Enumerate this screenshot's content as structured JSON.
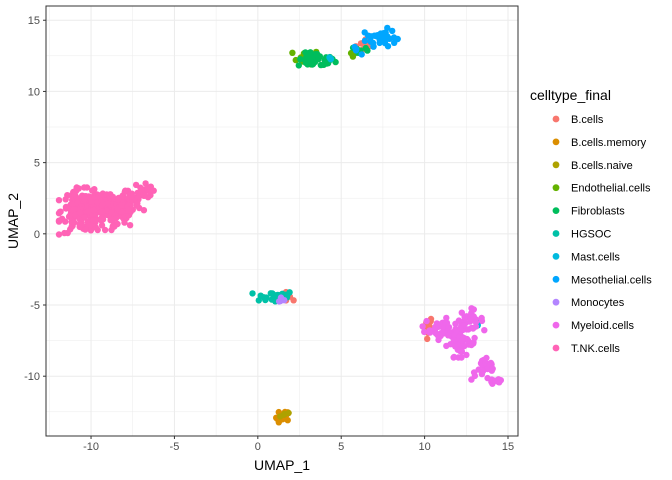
{
  "chart_data": {
    "type": "scatter",
    "xlabel": "UMAP_1",
    "ylabel": "UMAP_2",
    "xlim": [
      -12.7,
      15.6
    ],
    "ylim": [
      -14.2,
      16.0
    ],
    "x_ticks": [
      -10,
      -5,
      0,
      5,
      10,
      15
    ],
    "x_tick_labels": [
      "-10",
      "-5",
      "0",
      "5",
      "10",
      "15"
    ],
    "y_ticks": [
      -10,
      -5,
      0,
      5,
      10,
      15
    ],
    "y_tick_labels": [
      "-10",
      "-5",
      "0",
      "5",
      "10",
      "15"
    ],
    "grid": true,
    "legend": {
      "title": "celltype_final",
      "position": "right"
    },
    "series": [
      {
        "name": "B.cells",
        "color": "#F8766D",
        "clusters": [
          {
            "cx": 6.6,
            "cy": 13.3,
            "sx": 0.35,
            "sy": 0.25,
            "n": 10
          },
          {
            "cx": 10.2,
            "cy": -6.5,
            "sx": 0.15,
            "sy": 0.4,
            "n": 10
          },
          {
            "cx": 1.8,
            "cy": -4.4,
            "sx": 0.3,
            "sy": 0.15,
            "n": 6
          }
        ]
      },
      {
        "name": "B.cells.memory",
        "color": "#DB8E00",
        "clusters": [
          {
            "cx": 1.5,
            "cy": -12.9,
            "sx": 0.2,
            "sy": 0.25,
            "n": 16
          }
        ]
      },
      {
        "name": "B.cells.naive",
        "color": "#AEA200",
        "clusters": [
          {
            "cx": 1.6,
            "cy": -12.8,
            "sx": 0.15,
            "sy": 0.15,
            "n": 4
          }
        ]
      },
      {
        "name": "Endothelial.cells",
        "color": "#64B200",
        "clusters": [
          {
            "cx": 2.9,
            "cy": 12.4,
            "sx": 0.4,
            "sy": 0.25,
            "n": 12
          },
          {
            "cx": 5.7,
            "cy": 12.6,
            "sx": 0.15,
            "sy": 0.1,
            "n": 4
          }
        ]
      },
      {
        "name": "Fibroblasts",
        "color": "#00BD5C",
        "clusters": [
          {
            "cx": 3.5,
            "cy": 12.2,
            "sx": 0.55,
            "sy": 0.25,
            "n": 45
          },
          {
            "cx": 6.1,
            "cy": 12.9,
            "sx": 0.25,
            "sy": 0.15,
            "n": 8
          }
        ]
      },
      {
        "name": "HGSOC",
        "color": "#00C1A7",
        "clusters": [
          {
            "cx": 1.0,
            "cy": -4.4,
            "sx": 0.6,
            "sy": 0.2,
            "n": 35
          }
        ]
      },
      {
        "name": "Mast.cells",
        "color": "#00BADE",
        "clusters": [
          {
            "cx": 4.4,
            "cy": 12.3,
            "sx": 0.1,
            "sy": 0.1,
            "n": 3
          },
          {
            "cx": 13.2,
            "cy": -6.3,
            "sx": 0.1,
            "sy": 0.1,
            "n": 3
          }
        ]
      },
      {
        "name": "Mesothelial.cells",
        "color": "#00A6FF",
        "clusters": [
          {
            "cx": 7.4,
            "cy": 13.8,
            "sx": 0.45,
            "sy": 0.3,
            "n": 40
          },
          {
            "cx": 5.9,
            "cy": 13.0,
            "sx": 0.15,
            "sy": 0.2,
            "n": 4
          }
        ]
      },
      {
        "name": "Monocytes",
        "color": "#B385FF",
        "clusters": [
          {
            "cx": 1.4,
            "cy": -4.7,
            "sx": 0.15,
            "sy": 0.1,
            "n": 4
          }
        ]
      },
      {
        "name": "Myeloid.cells",
        "color": "#EF67EB",
        "clusters": [
          {
            "cx": 11.2,
            "cy": -6.6,
            "sx": 0.6,
            "sy": 0.4,
            "n": 50
          },
          {
            "cx": 12.2,
            "cy": -7.7,
            "sx": 0.45,
            "sy": 0.45,
            "n": 45
          },
          {
            "cx": 12.7,
            "cy": -6.0,
            "sx": 0.4,
            "sy": 0.35,
            "n": 22
          },
          {
            "cx": 13.6,
            "cy": -9.5,
            "sx": 0.4,
            "sy": 0.4,
            "n": 22
          },
          {
            "cx": 14.2,
            "cy": -10.3,
            "sx": 0.3,
            "sy": 0.2,
            "n": 12
          }
        ]
      },
      {
        "name": "T.NK.cells",
        "color": "#FF63B6",
        "clusters": [
          {
            "cx": -10.6,
            "cy": 1.6,
            "sx": 0.6,
            "sy": 0.75,
            "n": 150
          },
          {
            "cx": -9.2,
            "cy": 1.7,
            "sx": 0.7,
            "sy": 0.65,
            "n": 120
          },
          {
            "cx": -7.9,
            "cy": 2.0,
            "sx": 0.5,
            "sy": 0.55,
            "n": 60
          },
          {
            "cx": -6.9,
            "cy": 3.0,
            "sx": 0.3,
            "sy": 0.3,
            "n": 25
          }
        ]
      }
    ]
  }
}
